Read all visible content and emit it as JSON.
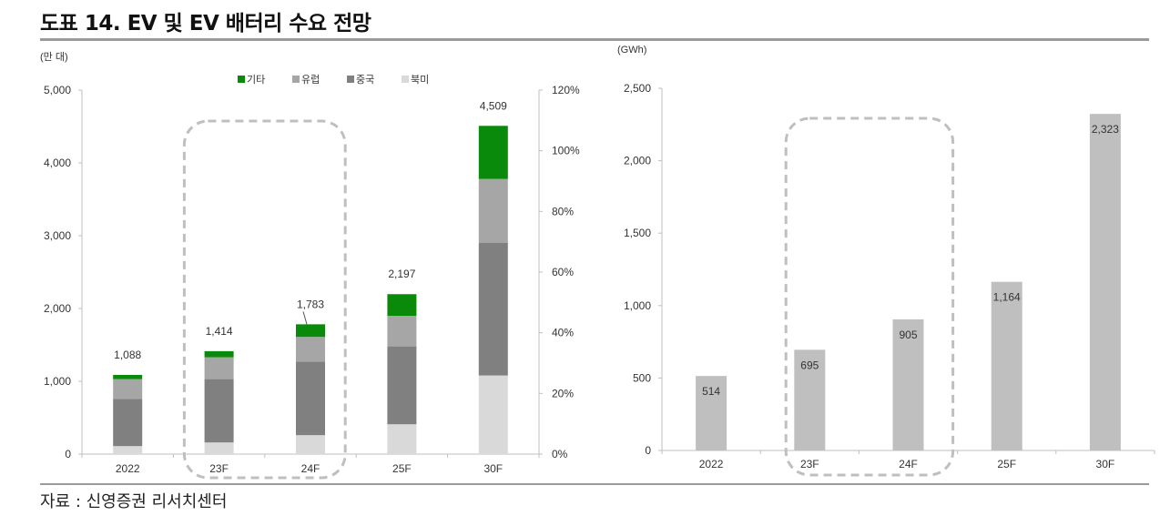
{
  "title": "도표 14. EV 및 EV 배터리 수요 전망",
  "source": "자료 : 신영증권 리서치센터",
  "colors": {
    "other": "#0a8a0a",
    "europe": "#a6a6a6",
    "china": "#808080",
    "north_america": "#d9d9d9",
    "battery_bar": "#bfbfbf",
    "axis": "#bfbfbf",
    "highlight_box": "#bfbfbf"
  },
  "chart_data": [
    {
      "type": "bar",
      "stacked": true,
      "unit_label": "(만 대)",
      "categories": [
        "2022",
        "23F",
        "24F",
        "25F",
        "30F"
      ],
      "series": [
        {
          "name": "북미",
          "color_key": "north_america",
          "values": [
            110,
            160,
            260,
            410,
            1080
          ]
        },
        {
          "name": "중국",
          "color_key": "china",
          "values": [
            650,
            870,
            1010,
            1070,
            1820
          ]
        },
        {
          "name": "유럽",
          "color_key": "europe",
          "values": [
            270,
            300,
            340,
            420,
            880
          ]
        },
        {
          "name": "기타",
          "color_key": "other",
          "values": [
            58,
            84,
            173,
            297,
            729
          ]
        }
      ],
      "legend_order": [
        "기타",
        "유럽",
        "중국",
        "북미"
      ],
      "legend_position": "top",
      "totals": [
        "1,088",
        "1,414",
        "1,783",
        "2,197",
        "4,509"
      ],
      "ylim": [
        0,
        5000
      ],
      "yticks": [
        0,
        1000,
        2000,
        3000,
        4000,
        5000
      ],
      "ytick_labels": [
        "0",
        "1,000",
        "2,000",
        "3,000",
        "4,000",
        "5,000"
      ],
      "y2lim": [
        0,
        120
      ],
      "y2ticks": [
        0,
        20,
        40,
        60,
        80,
        100,
        120
      ],
      "y2tick_labels": [
        "0%",
        "20%",
        "40%",
        "60%",
        "80%",
        "100%",
        "120%"
      ],
      "highlight": [
        "23F",
        "24F"
      ],
      "grid": false
    },
    {
      "type": "bar",
      "unit_label": "(GWh)",
      "categories": [
        "2022",
        "23F",
        "24F",
        "25F",
        "30F"
      ],
      "values": [
        514,
        695,
        905,
        1164,
        2323
      ],
      "value_labels": [
        "514",
        "695",
        "905",
        "1,164",
        "2,323"
      ],
      "ylim": [
        0,
        2500
      ],
      "yticks": [
        0,
        500,
        1000,
        1500,
        2000,
        2500
      ],
      "ytick_labels": [
        "0",
        "500",
        "1,000",
        "1,500",
        "2,000",
        "2,500"
      ],
      "highlight": [
        "23F",
        "24F"
      ],
      "grid": false
    }
  ]
}
